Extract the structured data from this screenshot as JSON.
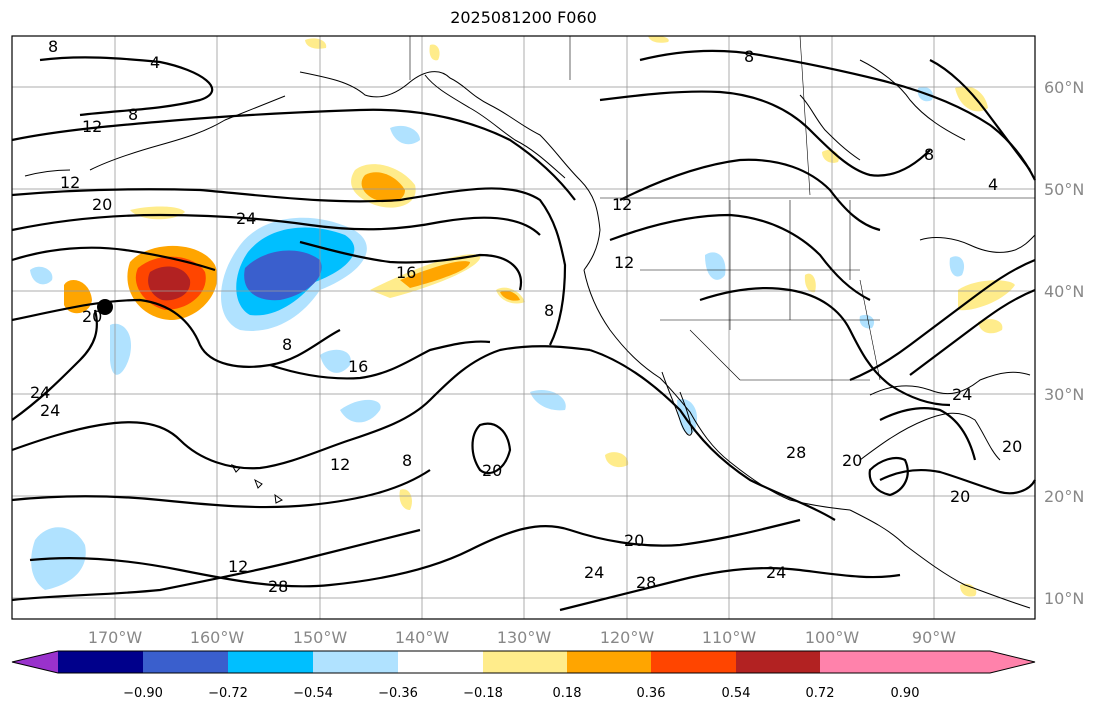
{
  "title": "2025081200 F060",
  "map": {
    "lat_labels": [
      "60°N",
      "50°N",
      "40°N",
      "30°N",
      "20°N",
      "10°N"
    ],
    "lon_labels": [
      "170°W",
      "160°W",
      "150°W",
      "140°W",
      "130°W",
      "120°W",
      "110°W",
      "100°W",
      "90°W"
    ],
    "contour_labels": [
      "8",
      "4",
      "12",
      "8",
      "12",
      "20",
      "24",
      "16",
      "20",
      "24",
      "24",
      "8",
      "16",
      "12",
      "8",
      "20",
      "12",
      "28",
      "20",
      "24",
      "28",
      "24",
      "28",
      "20",
      "8",
      "8",
      "12",
      "12",
      "8",
      "4",
      "24",
      "20",
      "20"
    ],
    "marker": "storm-center"
  },
  "colorbar": {
    "ticks": [
      "−0.90",
      "−0.72",
      "−0.54",
      "−0.36",
      "−0.18",
      "0.18",
      "0.36",
      "0.54",
      "0.72",
      "0.90"
    ],
    "colors": [
      "#9932cc",
      "#00008b",
      "#3a5fcd",
      "#00bfff",
      "#b0e2ff",
      "#ffffff",
      "#ffec8b",
      "#ffa500",
      "#ff4500",
      "#b22222",
      "#ff82ab"
    ]
  }
}
